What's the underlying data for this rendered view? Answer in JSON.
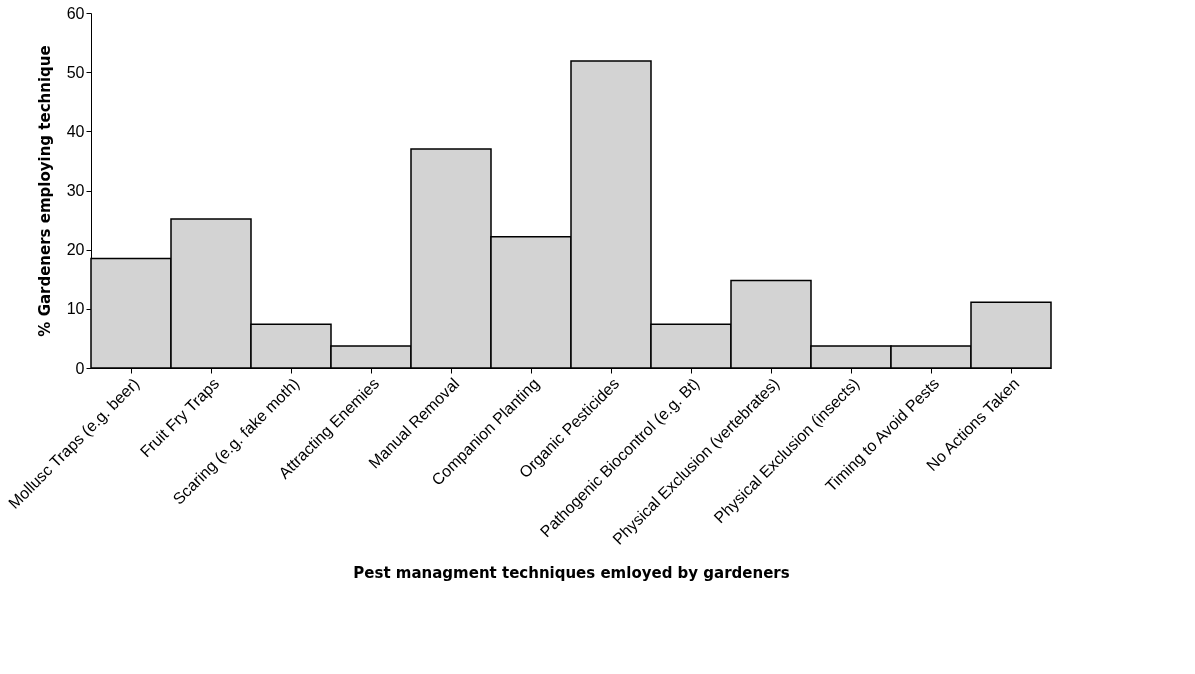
{
  "chart_data": {
    "type": "bar",
    "xlabel": "Pest managment techniques emloyed by gardeners",
    "ylabel": "% Gardeners employing technique",
    "categories": [
      "Mollusc Traps (e.g. beer)",
      "Fruit Fry Traps",
      "Scaring (e.g. fake moth)",
      "Attracting Enemies",
      "Manual Removal",
      "Companion Planting",
      "Organic Pesticides",
      "Pathogenic Biocontrol (e.g. Bt)",
      "Physical Exclusion (vertebrates)",
      "Physical Exclusion (insects)",
      "Timing to Avoid Pests",
      "No Actions Taken"
    ],
    "values": [
      18.5,
      25.2,
      7.4,
      3.7,
      37,
      22.2,
      51.9,
      7.4,
      14.8,
      3.7,
      3.7,
      11.1
    ],
    "color": "#d3d3d3",
    "ylim": [
      0,
      60
    ],
    "yticks": [
      0,
      10,
      20,
      30,
      40,
      50,
      60
    ],
    "grid": false,
    "legend": false
  }
}
